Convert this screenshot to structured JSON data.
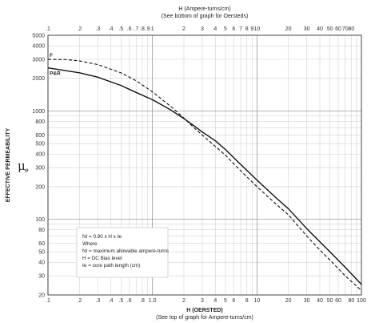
{
  "chart_data": {
    "type": "line",
    "top_axis": {
      "title_line1": "H (Ampere-turns/cm)",
      "title_line2": "(See bottom of graph for Oersteds)",
      "ticks": [
        {
          "v": 0.1,
          "label": ".1"
        },
        {
          "v": 0.2,
          "label": ".2"
        },
        {
          "v": 0.3,
          "label": ".3"
        },
        {
          "v": 0.4,
          "label": ".4"
        },
        {
          "v": 0.5,
          "label": ".5"
        },
        {
          "v": 0.6,
          "label": ".6"
        },
        {
          "v": 0.7,
          "label": ".7"
        },
        {
          "v": 0.8,
          "label": ".8"
        },
        {
          "v": 0.9,
          "label": ".9"
        },
        {
          "v": 1,
          "label": "1"
        },
        {
          "v": 2,
          "label": "2"
        },
        {
          "v": 3,
          "label": "3"
        },
        {
          "v": 4,
          "label": "4"
        },
        {
          "v": 5,
          "label": "5"
        },
        {
          "v": 6,
          "label": "6"
        },
        {
          "v": 7,
          "label": "7"
        },
        {
          "v": 8,
          "label": "8"
        },
        {
          "v": 9,
          "label": "9"
        },
        {
          "v": 10,
          "label": "10"
        },
        {
          "v": 20,
          "label": "20"
        },
        {
          "v": 30,
          "label": "30"
        },
        {
          "v": 40,
          "label": "40"
        },
        {
          "v": 50,
          "label": "50"
        },
        {
          "v": 60,
          "label": "60"
        },
        {
          "v": 70,
          "label": "70"
        },
        {
          "v": 80,
          "label": "80"
        }
      ]
    },
    "bottom_axis": {
      "title_line1": "H (OERSTED)",
      "title_line2": "(See top of graph for Ampere-turns/cm)",
      "ticks": [
        {
          "v": 0.1,
          "label": ".1"
        },
        {
          "v": 0.2,
          "label": ".2"
        },
        {
          "v": 0.3,
          "label": ".3"
        },
        {
          "v": 0.4,
          "label": ".4"
        },
        {
          "v": 0.5,
          "label": ".5"
        },
        {
          "v": 0.6,
          "label": ".6"
        },
        {
          "v": 0.8,
          "label": ".8"
        },
        {
          "v": 1,
          "label": "1.0"
        },
        {
          "v": 2,
          "label": "2"
        },
        {
          "v": 3,
          "label": "3"
        },
        {
          "v": 4,
          "label": "4"
        },
        {
          "v": 5,
          "label": "5"
        },
        {
          "v": 6,
          "label": "6"
        },
        {
          "v": 8,
          "label": "8"
        },
        {
          "v": 10,
          "label": "10"
        },
        {
          "v": 20,
          "label": "20"
        },
        {
          "v": 30,
          "label": "30"
        },
        {
          "v": 40,
          "label": "40"
        },
        {
          "v": 50,
          "label": "50"
        },
        {
          "v": 60,
          "label": "60"
        },
        {
          "v": 80,
          "label": "80"
        },
        {
          "v": 100,
          "label": "100"
        }
      ]
    },
    "y_axis": {
      "title": "EFFECTIVE PERMEABILITY",
      "symbol": "μ",
      "symbol_sub": "e",
      "scale": "log",
      "ticks": [
        {
          "v": 5000,
          "label": "5000"
        },
        {
          "v": 4000,
          "label": "4000"
        },
        {
          "v": 3000,
          "label": "3000"
        },
        {
          "v": 2000,
          "label": "2000"
        },
        {
          "v": 1000,
          "label": "1000"
        },
        {
          "v": 800,
          "label": "800"
        },
        {
          "v": 600,
          "label": "600"
        },
        {
          "v": 500,
          "label": "500"
        },
        {
          "v": 400,
          "label": "400"
        },
        {
          "v": 300,
          "label": "300"
        },
        {
          "v": 200,
          "label": "200"
        },
        {
          "v": 100,
          "label": "100"
        },
        {
          "v": 80,
          "label": "80"
        },
        {
          "v": 60,
          "label": "60"
        },
        {
          "v": 50,
          "label": "50"
        },
        {
          "v": 40,
          "label": "40"
        },
        {
          "v": 30,
          "label": "30"
        },
        {
          "v": 20,
          "label": "20"
        }
      ]
    },
    "xlim": [
      0.1,
      100
    ],
    "ylim": [
      20,
      5000
    ],
    "grid": true,
    "series": [
      {
        "name": "F",
        "style": "dashed",
        "x": [
          0.1,
          0.15,
          0.2,
          0.3,
          0.5,
          0.7,
          1,
          1.5,
          2,
          2.5,
          3,
          4,
          5,
          7,
          10,
          15,
          20,
          30,
          40,
          50,
          70,
          100
        ],
        "y": [
          3000,
          2980,
          2900,
          2680,
          2250,
          1900,
          1500,
          1100,
          860,
          700,
          600,
          470,
          390,
          280,
          200,
          140,
          110,
          70,
          52,
          42,
          30,
          22
        ]
      },
      {
        "name": "P&R",
        "style": "solid",
        "x": [
          0.1,
          0.2,
          0.3,
          0.5,
          0.7,
          1,
          1.5,
          2,
          2.5,
          3,
          4,
          5,
          7,
          10,
          15,
          20,
          30,
          40,
          50,
          70,
          100
        ],
        "y": [
          2500,
          2250,
          2050,
          1720,
          1480,
          1270,
          1020,
          850,
          730,
          640,
          530,
          440,
          320,
          230,
          160,
          125,
          82,
          62,
          50,
          36,
          25
        ]
      }
    ]
  },
  "note": {
    "lines": [
      "NI = 0.80 x H x ℓe",
      "Where",
      "NI = maximum allowable ampere-turns",
      "H = DC Bias level",
      "ℓe = core path length (cm)"
    ]
  }
}
